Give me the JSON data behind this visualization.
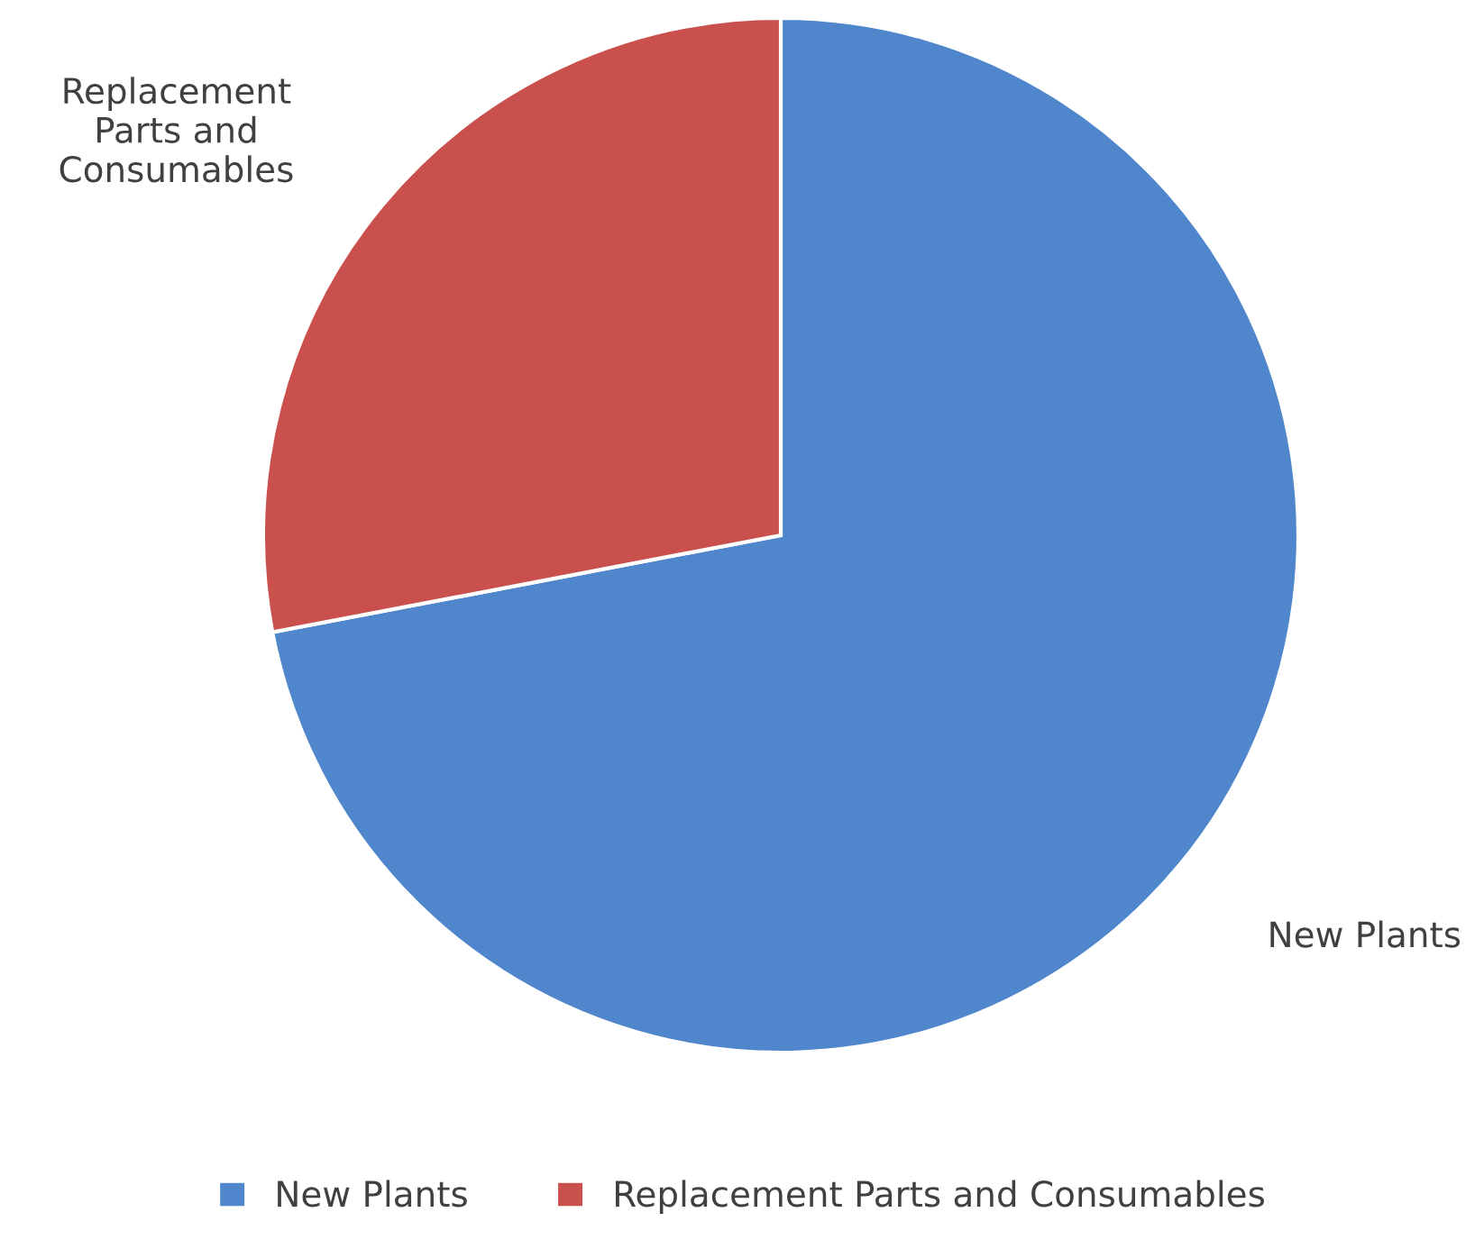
{
  "chart_data": {
    "type": "pie",
    "categories": [
      "New Plants",
      "Replacement Parts and Consumables"
    ],
    "values": [
      72,
      28
    ],
    "colors": [
      "#4f86cc",
      "#c9504c"
    ],
    "legend": "bottom"
  }
}
